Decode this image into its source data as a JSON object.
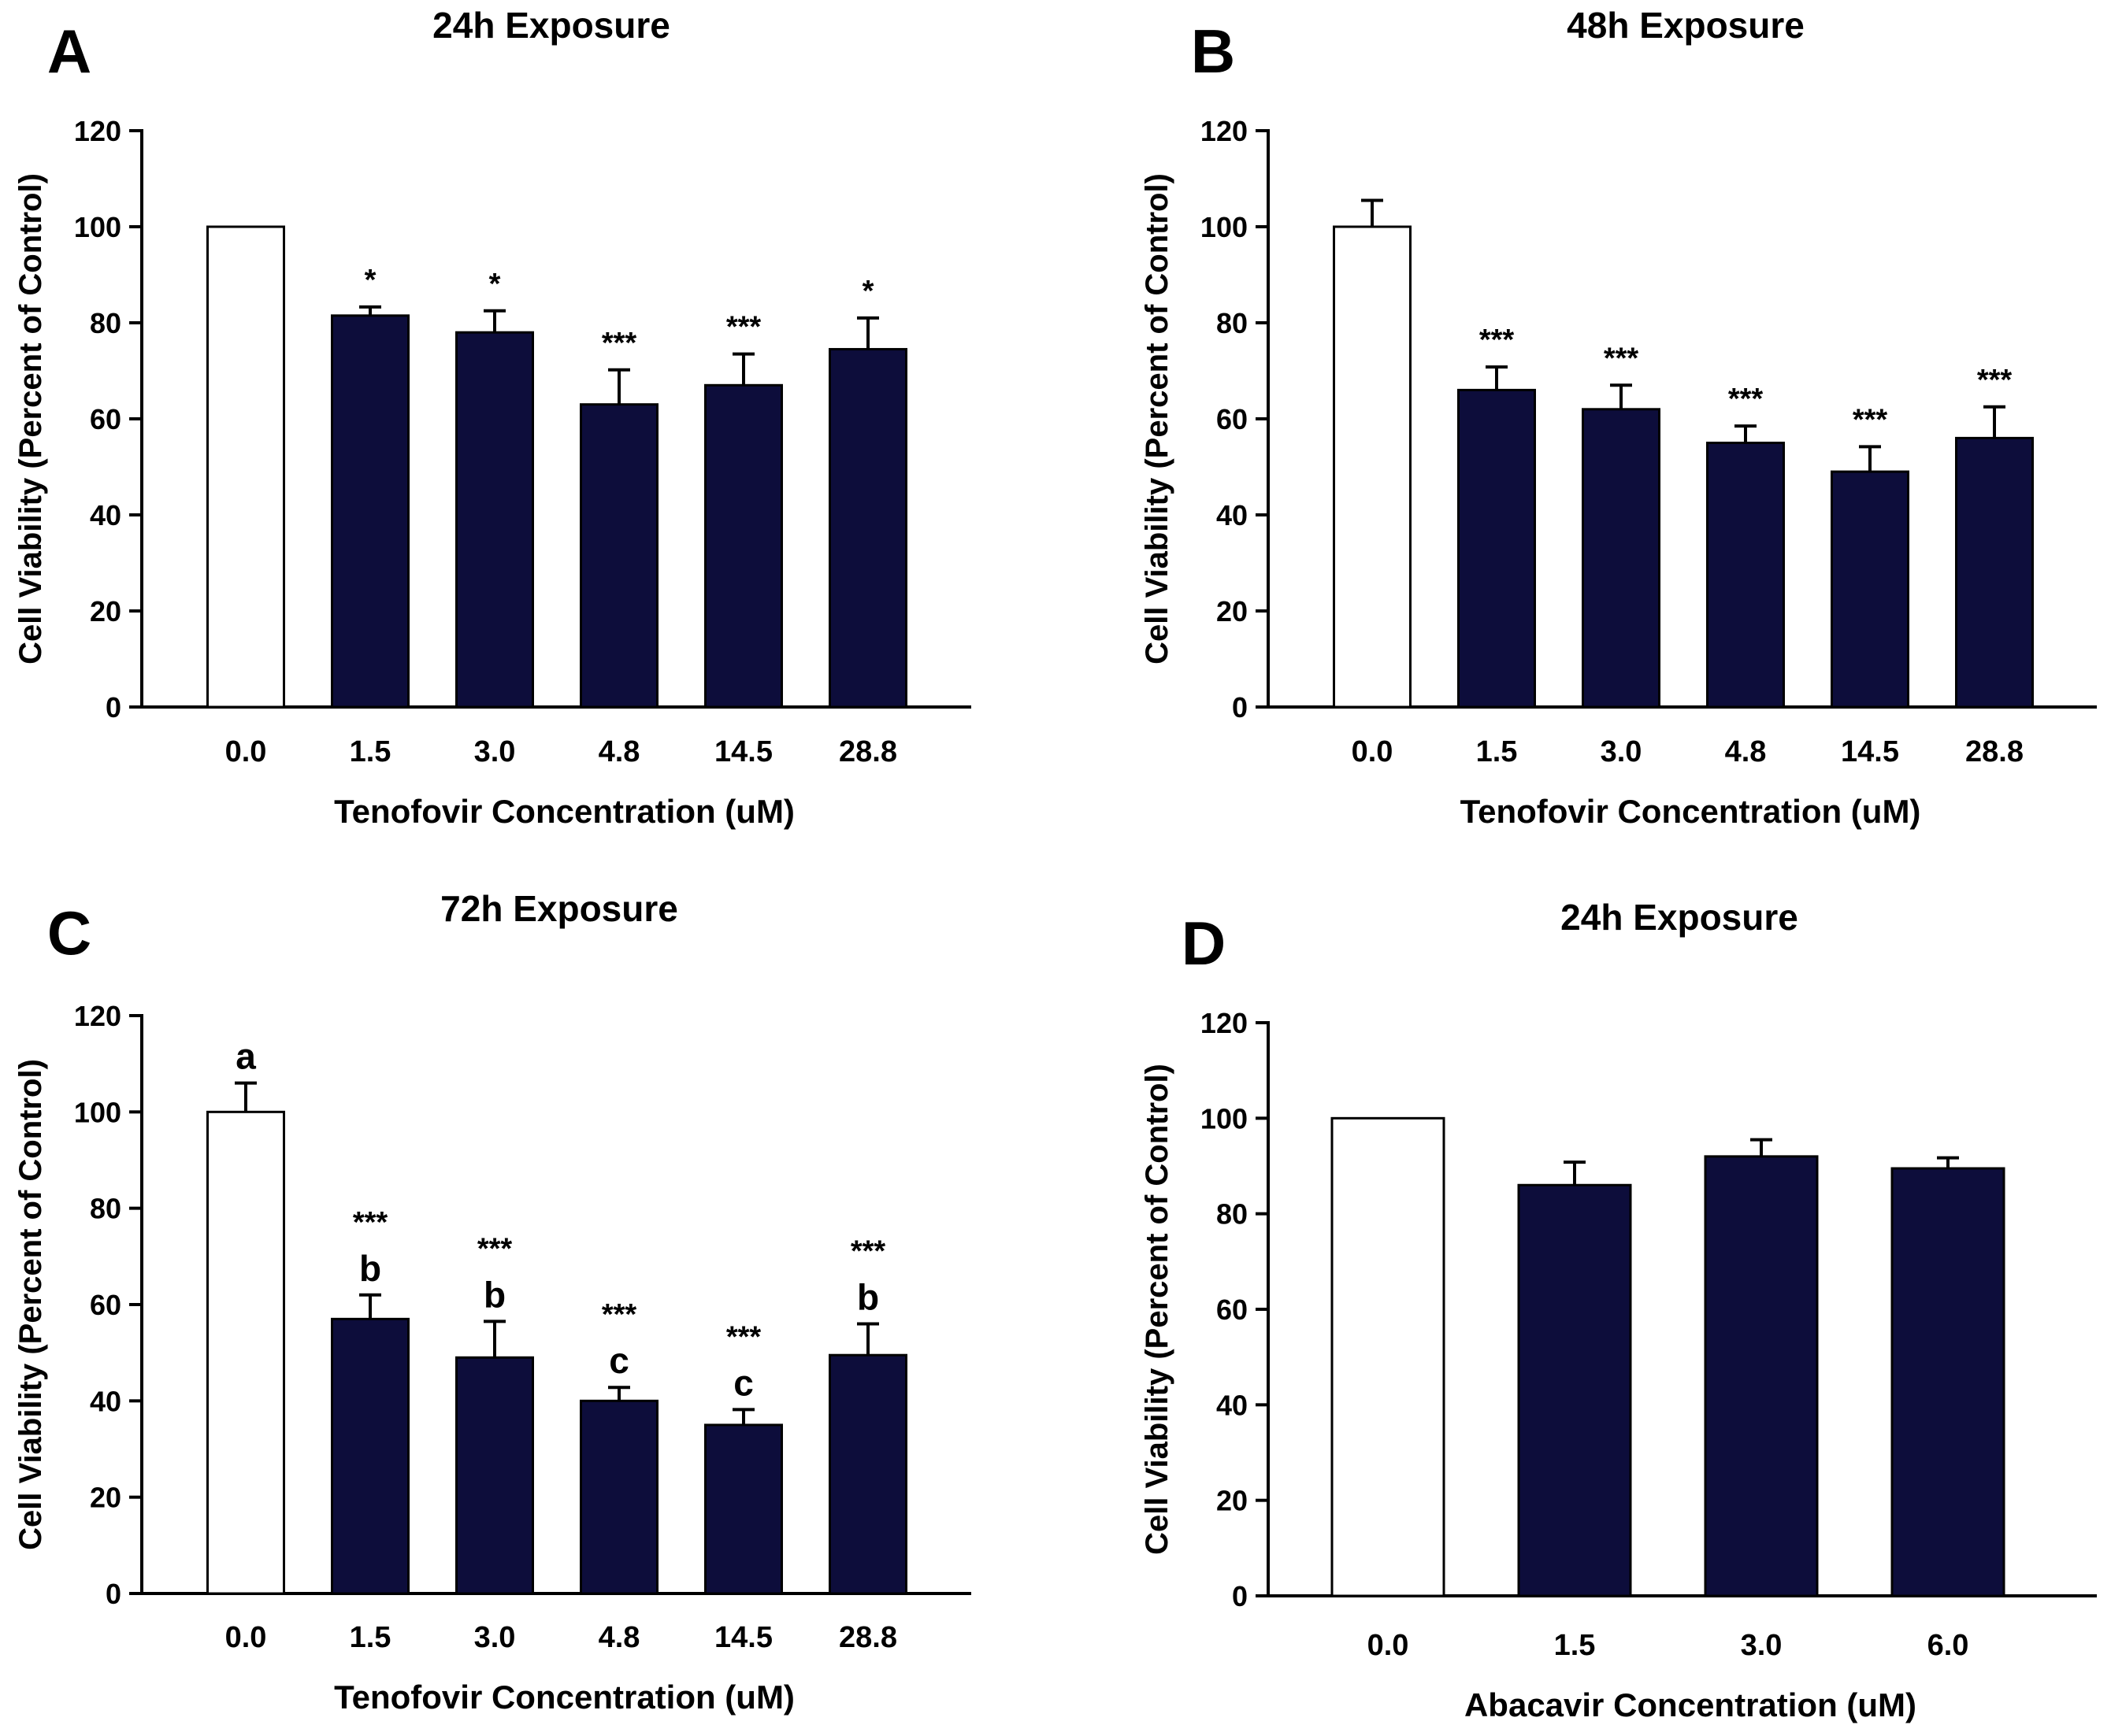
{
  "colors": {
    "control_fill": "#ffffff",
    "treated_fill": "#0d0d3b",
    "axis": "#000000"
  },
  "chart_data": [
    {
      "panel_label": "A",
      "type": "bar",
      "title": "24h Exposure",
      "xlabel": "Tenofovir Concentration (uM)",
      "ylabel": "Cell Viability (Percent of Control)",
      "ylim": [
        0,
        120
      ],
      "yticks": [
        0,
        20,
        40,
        60,
        80,
        100,
        120
      ],
      "categories": [
        "0.0",
        "1.5",
        "3.0",
        "4.8",
        "14.5",
        "28.8"
      ],
      "values": [
        100,
        81.5,
        78,
        63,
        67,
        74.5
      ],
      "errors": [
        0,
        1.8,
        4.5,
        7.2,
        6.5,
        6.5
      ],
      "significance": [
        "",
        "*",
        "*",
        "***",
        "***",
        "*"
      ],
      "letters": [
        "",
        "",
        "",
        "",
        "",
        ""
      ]
    },
    {
      "panel_label": "B",
      "type": "bar",
      "title": "48h Exposure",
      "xlabel": "Tenofovir Concentration (uM)",
      "ylabel": "Cell Viability (Percent of Control)",
      "ylim": [
        0,
        120
      ],
      "yticks": [
        0,
        20,
        40,
        60,
        80,
        100,
        120
      ],
      "categories": [
        "0.0",
        "1.5",
        "3.0",
        "4.8",
        "14.5",
        "28.8"
      ],
      "values": [
        100,
        66,
        62,
        55,
        49,
        56
      ],
      "errors": [
        5.5,
        4.8,
        5,
        3.5,
        5.2,
        6.5
      ],
      "significance": [
        "",
        "***",
        "***",
        "***",
        "***",
        "***"
      ],
      "letters": [
        "",
        "",
        "",
        "",
        "",
        ""
      ]
    },
    {
      "panel_label": "C",
      "type": "bar",
      "title": "72h Exposure",
      "xlabel": "Tenofovir Concentration (uM)",
      "ylabel": "Cell Viability (Percent of Control)",
      "ylim": [
        0,
        120
      ],
      "yticks": [
        0,
        20,
        40,
        60,
        80,
        100,
        120
      ],
      "categories": [
        "0.0",
        "1.5",
        "3.0",
        "4.8",
        "14.5",
        "28.8"
      ],
      "values": [
        100,
        57,
        49,
        40,
        35,
        49.5
      ],
      "errors": [
        6,
        5,
        7.5,
        2.8,
        3.2,
        6.5
      ],
      "significance": [
        "",
        "***",
        "***",
        "***",
        "***",
        "***"
      ],
      "letters": [
        "a",
        "b",
        "b",
        "c",
        "c",
        "b"
      ]
    },
    {
      "panel_label": "D",
      "type": "bar",
      "title": "24h Exposure",
      "xlabel": "Abacavir Concentration (uM)",
      "ylabel": "Cell Viability (Percent of Control)",
      "ylim": [
        0,
        120
      ],
      "yticks": [
        0,
        20,
        40,
        60,
        80,
        100,
        120
      ],
      "categories": [
        "0.0",
        "1.5",
        "3.0",
        "6.0"
      ],
      "values": [
        100,
        86,
        92,
        89.5
      ],
      "errors": [
        0,
        4.8,
        3.5,
        2.2
      ],
      "significance": [
        "",
        "",
        "",
        ""
      ],
      "letters": [
        "",
        "",
        "",
        ""
      ]
    }
  ]
}
